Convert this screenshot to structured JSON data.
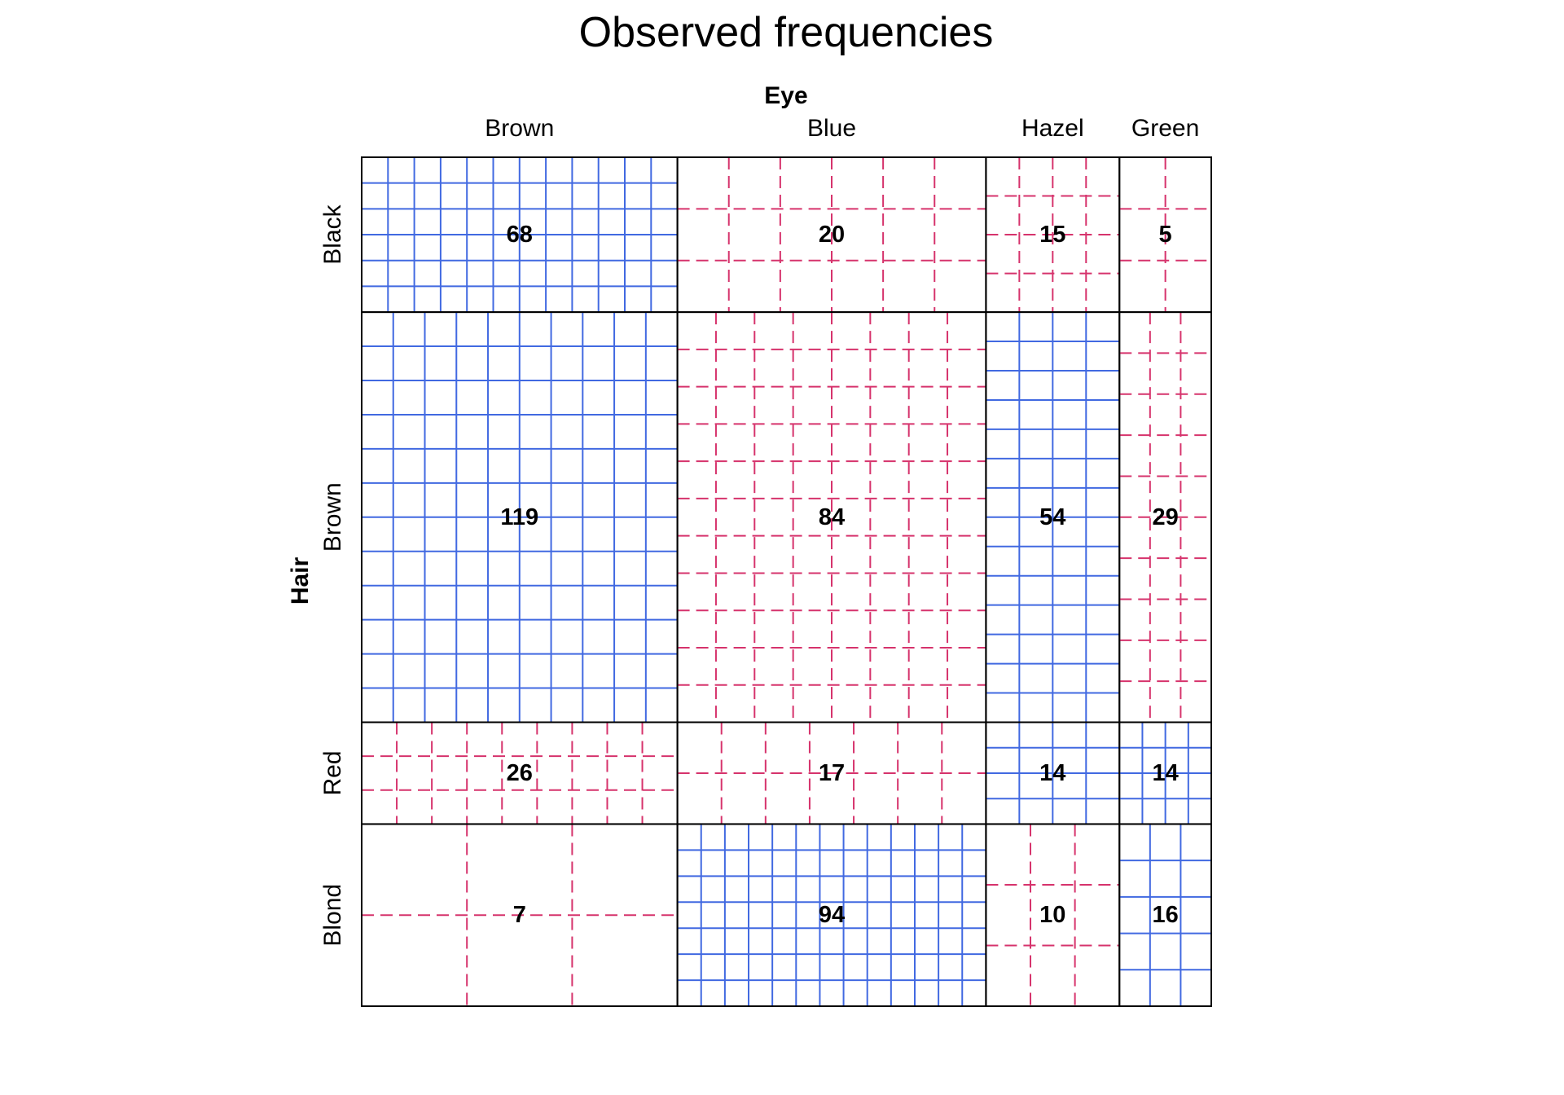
{
  "chart_data": {
    "type": "sieve",
    "title": "Observed frequencies",
    "column_factor": "Eye",
    "row_factor": "Hair",
    "columns": [
      "Brown",
      "Blue",
      "Hazel",
      "Green"
    ],
    "rows": [
      "Black",
      "Brown",
      "Red",
      "Blond"
    ],
    "values": [
      [
        68,
        20,
        15,
        5
      ],
      [
        119,
        84,
        54,
        29
      ],
      [
        26,
        17,
        14,
        14
      ],
      [
        7,
        94,
        10,
        16
      ]
    ],
    "colors": {
      "positive": "#4169e1",
      "negative": "#d6336c",
      "border": "#000000"
    },
    "legend": "none"
  }
}
